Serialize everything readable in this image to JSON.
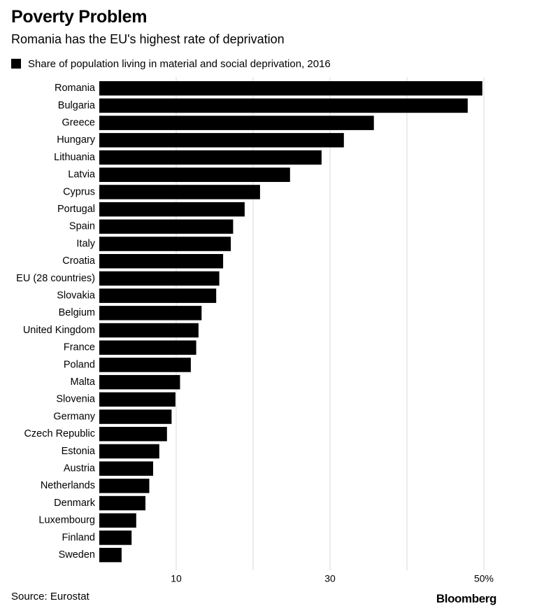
{
  "title": "Poverty Problem",
  "subtitle": "Romania has the EU's highest rate of deprivation",
  "source": "Source: Eurostat",
  "brand": "Bloomberg",
  "colors": {
    "bar": "#000000",
    "grid": "#d9d9d9",
    "text": "#000000"
  },
  "chart_data": {
    "type": "bar",
    "orientation": "horizontal",
    "series": [
      {
        "name": "Share of population living in material and social deprivation, 2016",
        "values": [
          49.8,
          47.9,
          35.7,
          31.8,
          28.9,
          24.8,
          20.9,
          18.9,
          17.4,
          17.1,
          16.1,
          15.6,
          15.2,
          13.3,
          12.9,
          12.6,
          11.9,
          10.5,
          9.9,
          9.4,
          8.8,
          7.8,
          7.0,
          6.5,
          6.0,
          4.8,
          4.2,
          2.9
        ]
      }
    ],
    "categories": [
      "Romania",
      "Bulgaria",
      "Greece",
      "Hungary",
      "Lithuania",
      "Latvia",
      "Cyprus",
      "Portugal",
      "Spain",
      "Italy",
      "Croatia",
      "EU (28 countries)",
      "Slovakia",
      "Belgium",
      "United Kingdom",
      "France",
      "Poland",
      "Malta",
      "Slovenia",
      "Germany",
      "Czech Republic",
      "Estonia",
      "Austria",
      "Netherlands",
      "Denmark",
      "Luxembourg",
      "Finland",
      "Sweden"
    ],
    "xlim": [
      0,
      50
    ],
    "ticks": [
      10,
      20,
      30,
      40,
      50
    ],
    "tick_labels": [
      "10",
      "",
      "30",
      "",
      "50%"
    ],
    "grid": true,
    "legend_position": "top-left"
  }
}
